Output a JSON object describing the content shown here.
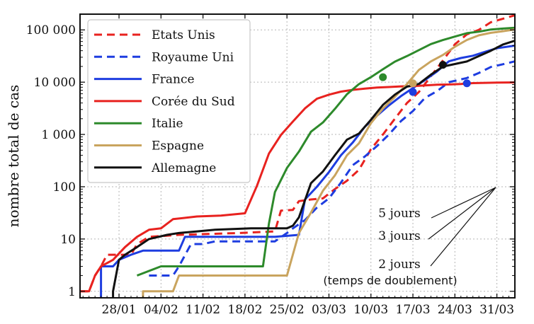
{
  "chart_data": {
    "type": "line",
    "title": "",
    "xlabel": "",
    "ylabel": "nombre total de cas",
    "yscale": "log",
    "ylim": [
      0.75,
      200000
    ],
    "xlim": [
      -6.5,
      66
    ],
    "grid": true,
    "legend_position": "top-left",
    "x_unit": "days from 28/01",
    "x_ticks": [
      {
        "value": 0,
        "label": "28/01"
      },
      {
        "value": 7,
        "label": "04/02"
      },
      {
        "value": 14,
        "label": "11/02"
      },
      {
        "value": 21,
        "label": "18/02"
      },
      {
        "value": 28,
        "label": "25/02"
      },
      {
        "value": 35,
        "label": "03/03"
      },
      {
        "value": 42,
        "label": "10/03"
      },
      {
        "value": 49,
        "label": "17/03"
      },
      {
        "value": 56,
        "label": "24/03"
      },
      {
        "value": 63,
        "label": "31/03"
      }
    ],
    "y_ticks": [
      {
        "value": 1,
        "label": "1"
      },
      {
        "value": 10,
        "label": "10"
      },
      {
        "value": 100,
        "label": "100"
      },
      {
        "value": 1000,
        "label": "1 000"
      },
      {
        "value": 10000,
        "label": "10 000"
      },
      {
        "value": 100000,
        "label": "100 000"
      }
    ],
    "series": [
      {
        "name": "Etats Unis",
        "color": "#e8221f",
        "dash": true,
        "points": [
          [
            -6.5,
            1
          ],
          [
            -5,
            1
          ],
          [
            -4,
            2
          ],
          [
            -3,
            3
          ],
          [
            -2,
            5
          ],
          [
            2,
            5
          ],
          [
            3,
            8
          ],
          [
            5,
            11
          ],
          [
            10,
            12
          ],
          [
            20,
            13
          ],
          [
            26,
            14
          ],
          [
            27,
            35
          ],
          [
            29,
            36
          ],
          [
            30,
            53
          ],
          [
            32,
            57
          ],
          [
            34,
            60
          ],
          [
            36,
            90
          ],
          [
            38,
            130
          ],
          [
            40,
            210
          ],
          [
            42,
            520
          ],
          [
            44,
            1000
          ],
          [
            46,
            2000
          ],
          [
            48,
            4000
          ],
          [
            50,
            6500
          ],
          [
            52,
            13000
          ],
          [
            54,
            26000
          ],
          [
            56,
            53000
          ],
          [
            58,
            82000
          ],
          [
            60,
            100000
          ],
          [
            62,
            140000
          ],
          [
            66,
            190000
          ]
        ],
        "markers": []
      },
      {
        "name": "Royaume Uni",
        "color": "#1e3de0",
        "dash": true,
        "points": [
          [
            5,
            2
          ],
          [
            9,
            2
          ],
          [
            10,
            3
          ],
          [
            12,
            8
          ],
          [
            14,
            8
          ],
          [
            16,
            9
          ],
          [
            26,
            9
          ],
          [
            28,
            13
          ],
          [
            29,
            16
          ],
          [
            31,
            23
          ],
          [
            33,
            40
          ],
          [
            35,
            60
          ],
          [
            37,
            120
          ],
          [
            39,
            260
          ],
          [
            41,
            380
          ],
          [
            43,
            600
          ],
          [
            45,
            1000
          ],
          [
            47,
            1800
          ],
          [
            49,
            2800
          ],
          [
            51,
            5000
          ],
          [
            53,
            6700
          ],
          [
            55,
            10000
          ],
          [
            58,
            12000
          ],
          [
            60,
            15000
          ],
          [
            62,
            19500
          ],
          [
            64,
            22000
          ],
          [
            66,
            25000
          ]
        ],
        "markers": [
          [
            58,
            9500
          ]
        ]
      },
      {
        "name": "France",
        "color": "#1e3de0",
        "dash": false,
        "points": [
          [
            -3,
            0.5
          ],
          [
            -3,
            3
          ],
          [
            -1,
            3
          ],
          [
            0,
            4
          ],
          [
            2,
            5
          ],
          [
            4,
            6
          ],
          [
            10,
            6
          ],
          [
            11,
            11
          ],
          [
            26,
            11
          ],
          [
            30,
            12
          ],
          [
            31,
            57
          ],
          [
            33,
            100
          ],
          [
            35,
            191
          ],
          [
            37,
            400
          ],
          [
            39,
            706
          ],
          [
            41,
            1412
          ],
          [
            43,
            2280
          ],
          [
            45,
            3600
          ],
          [
            47,
            5400
          ],
          [
            49,
            7700
          ],
          [
            51,
            11000
          ],
          [
            53,
            16000
          ],
          [
            55,
            25000
          ],
          [
            57,
            29000
          ],
          [
            59,
            32000
          ],
          [
            61,
            38000
          ],
          [
            63,
            44500
          ],
          [
            66,
            50000
          ]
        ],
        "markers": [
          [
            49,
            6500
          ]
        ]
      },
      {
        "name": "Corée du Sud",
        "color": "#e8221f",
        "dash": false,
        "points": [
          [
            -6.5,
            1
          ],
          [
            -5,
            1
          ],
          [
            -4,
            2
          ],
          [
            -3,
            3
          ],
          [
            -1,
            4
          ],
          [
            1,
            7
          ],
          [
            3,
            11
          ],
          [
            5,
            15
          ],
          [
            7,
            16
          ],
          [
            9,
            24
          ],
          [
            13,
            27
          ],
          [
            17,
            28
          ],
          [
            21,
            31
          ],
          [
            23,
            104
          ],
          [
            25,
            433
          ],
          [
            27,
            977
          ],
          [
            29,
            1766
          ],
          [
            31,
            3150
          ],
          [
            33,
            4812
          ],
          [
            35,
            5766
          ],
          [
            37,
            6593
          ],
          [
            39,
            7134
          ],
          [
            41,
            7513
          ],
          [
            43,
            7869
          ],
          [
            45,
            8086
          ],
          [
            47,
            8320
          ],
          [
            49,
            8413
          ],
          [
            51,
            8652
          ],
          [
            53,
            8961
          ],
          [
            55,
            9037
          ],
          [
            57,
            9241
          ],
          [
            59,
            9583
          ],
          [
            63,
            9786
          ],
          [
            66,
            9887
          ]
        ],
        "markers": []
      },
      {
        "name": "Italie",
        "color": "#2d8a2b",
        "dash": false,
        "points": [
          [
            3,
            2
          ],
          [
            7,
            3
          ],
          [
            24,
            3
          ],
          [
            25,
            20
          ],
          [
            26,
            79
          ],
          [
            28,
            229
          ],
          [
            30,
            470
          ],
          [
            32,
            1128
          ],
          [
            34,
            1694
          ],
          [
            36,
            3089
          ],
          [
            38,
            5883
          ],
          [
            40,
            9172
          ],
          [
            42,
            12462
          ],
          [
            44,
            17660
          ],
          [
            46,
            24747
          ],
          [
            48,
            31506
          ],
          [
            50,
            41035
          ],
          [
            52,
            53578
          ],
          [
            54,
            63927
          ],
          [
            56,
            74386
          ],
          [
            58,
            86498
          ],
          [
            60,
            92472
          ],
          [
            62,
            101739
          ],
          [
            64,
            105792
          ],
          [
            66,
            110000
          ]
        ],
        "markers": [
          [
            44,
            12462
          ]
        ]
      },
      {
        "name": "Espagne",
        "color": "#c9a45e",
        "dash": false,
        "points": [
          [
            4,
            0.5
          ],
          [
            4,
            1
          ],
          [
            9,
            1
          ],
          [
            10,
            2
          ],
          [
            16,
            2
          ],
          [
            28,
            2
          ],
          [
            30,
            13
          ],
          [
            32,
            32
          ],
          [
            34,
            84
          ],
          [
            36,
            165
          ],
          [
            38,
            400
          ],
          [
            40,
            674
          ],
          [
            42,
            1639
          ],
          [
            44,
            3146
          ],
          [
            46,
            5232
          ],
          [
            48,
            9191
          ],
          [
            50,
            17147
          ],
          [
            52,
            24926
          ],
          [
            54,
            33089
          ],
          [
            56,
            47610
          ],
          [
            58,
            64059
          ],
          [
            60,
            78797
          ],
          [
            62,
            87956
          ],
          [
            64,
            94417
          ],
          [
            66,
            102136
          ]
        ],
        "markers": [
          [
            49,
            9500
          ]
        ]
      },
      {
        "name": "Allemagne",
        "color": "#111111",
        "dash": false,
        "points": [
          [
            -1,
            0.5
          ],
          [
            -1,
            1
          ],
          [
            0,
            4
          ],
          [
            1,
            5
          ],
          [
            3,
            7
          ],
          [
            5,
            10
          ],
          [
            8,
            12
          ],
          [
            10,
            13
          ],
          [
            13,
            14
          ],
          [
            16,
            15
          ],
          [
            22,
            16
          ],
          [
            28,
            16
          ],
          [
            29,
            18
          ],
          [
            30,
            26
          ],
          [
            32,
            117
          ],
          [
            34,
            196
          ],
          [
            36,
            400
          ],
          [
            38,
            795
          ],
          [
            40,
            1040
          ],
          [
            42,
            1908
          ],
          [
            44,
            3675
          ],
          [
            46,
            5795
          ],
          [
            48,
            8198
          ],
          [
            50,
            9257
          ],
          [
            52,
            13957
          ],
          [
            54,
            19848
          ],
          [
            56,
            22213
          ],
          [
            58,
            24873
          ],
          [
            60,
            31554
          ],
          [
            62,
            40003
          ],
          [
            64,
            52547
          ],
          [
            66,
            61913
          ]
        ],
        "markers": [
          [
            54,
            21500
          ]
        ]
      }
    ],
    "annotations": [
      {
        "text": "5 jours",
        "role": "doubling-5"
      },
      {
        "text": "3 jours",
        "role": "doubling-3"
      },
      {
        "text": "2 jours",
        "role": "doubling-2"
      },
      {
        "text": "(temps de doublement)",
        "role": "doubling-caption"
      }
    ]
  }
}
